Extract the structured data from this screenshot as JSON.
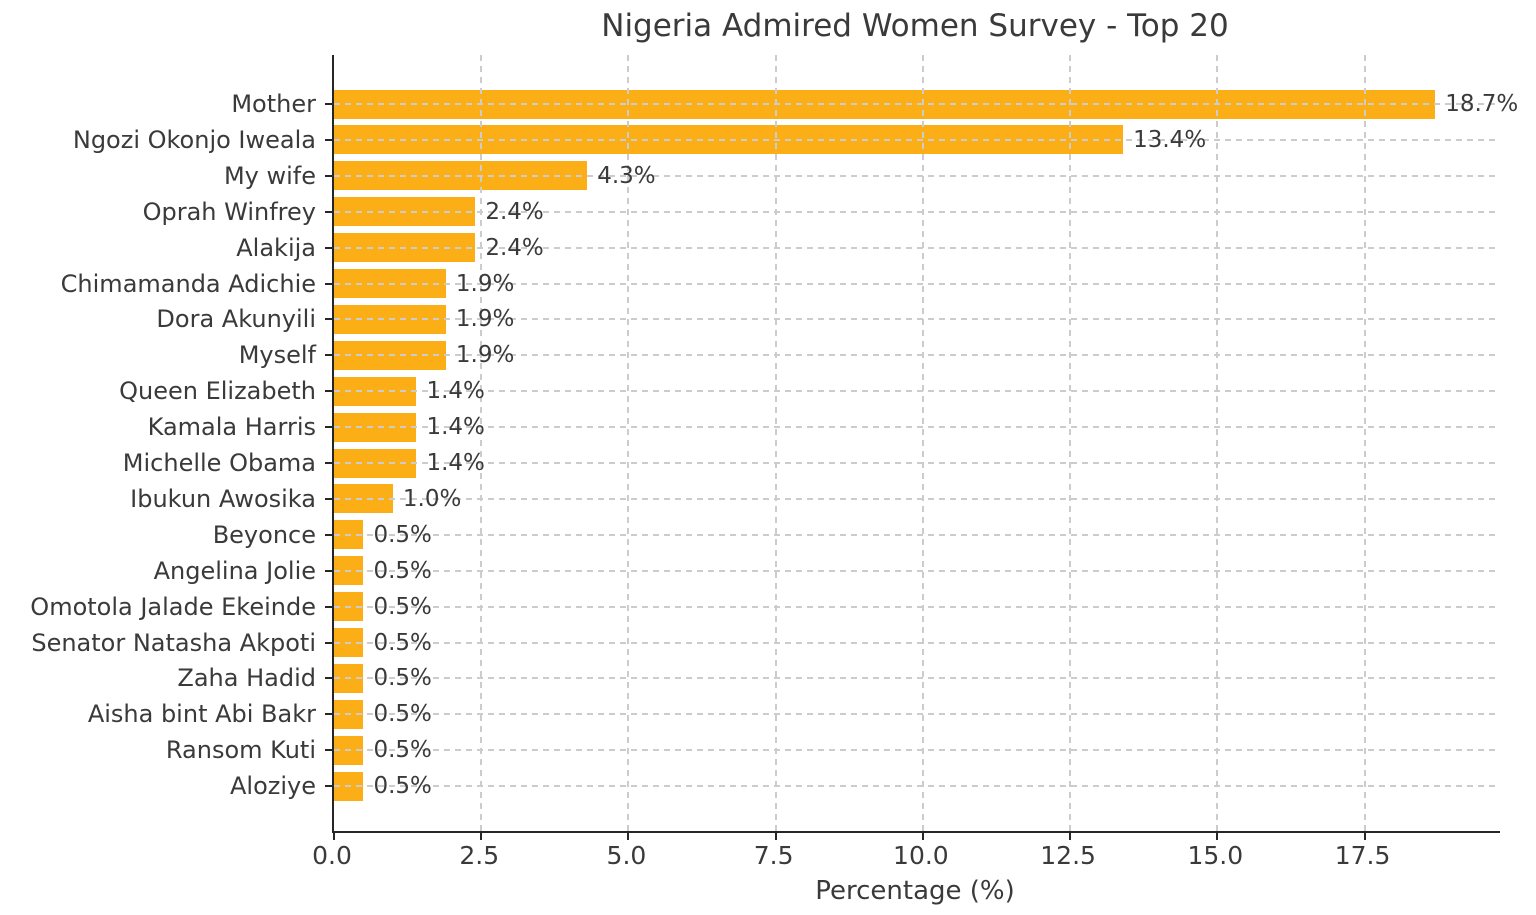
{
  "chart_data": {
    "type": "bar",
    "orientation": "horizontal",
    "title": "Nigeria Admired Women Survey - Top 20",
    "xlabel": "Percentage (%)",
    "ylabel": "",
    "categories": [
      "Mother",
      "Ngozi Okonjo Iweala",
      "My wife",
      "Oprah Winfrey",
      "Alakija",
      "Chimamanda Adichie",
      "Dora Akunyili",
      "Myself",
      "Queen Elizabeth",
      "Kamala Harris",
      "Michelle Obama",
      "Ibukun Awosika",
      "Beyonce",
      "Angelina Jolie",
      "Omotola Jalade Ekeinde",
      "Senator Natasha Akpoti",
      "Zaha Hadid",
      "Aisha bint Abi Bakr",
      "Ransom Kuti",
      "Aloziye"
    ],
    "values": [
      18.7,
      13.4,
      4.3,
      2.4,
      2.4,
      1.9,
      1.9,
      1.9,
      1.4,
      1.4,
      1.4,
      1.0,
      0.5,
      0.5,
      0.5,
      0.5,
      0.5,
      0.5,
      0.5,
      0.5
    ],
    "value_labels": [
      "18.7%",
      "13.4%",
      "4.3%",
      "2.4%",
      "2.4%",
      "1.9%",
      "1.9%",
      "1.9%",
      "1.4%",
      "1.4%",
      "1.4%",
      "1.0%",
      "0.5%",
      "0.5%",
      "0.5%",
      "0.5%",
      "0.5%",
      "0.5%",
      "0.5%",
      "0.5%"
    ],
    "x_ticks": [
      0.0,
      2.5,
      5.0,
      7.5,
      10.0,
      12.5,
      15.0,
      17.5
    ],
    "x_tick_labels": [
      "0.0",
      "2.5",
      "5.0",
      "7.5",
      "10.0",
      "12.5",
      "15.0",
      "17.5"
    ],
    "xlim": [
      0,
      19.8
    ],
    "grid": true,
    "grid_style": "dashed",
    "legend": null,
    "colors": {
      "bar": "#FCAE17",
      "grid": "#cccccc",
      "axis": "#262626",
      "text": "#3a3a3a",
      "background": "#ffffff"
    }
  }
}
